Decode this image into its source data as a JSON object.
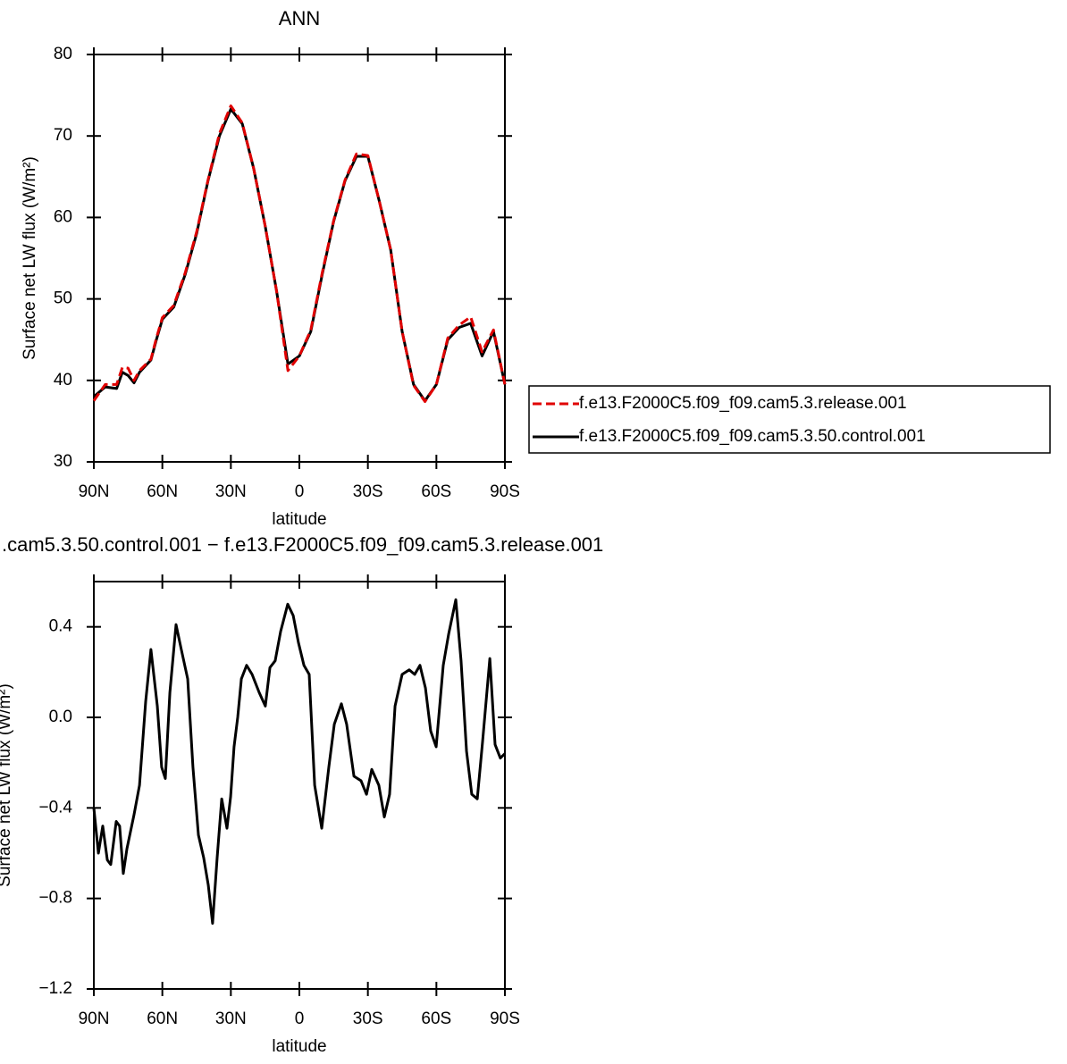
{
  "chart_data": [
    {
      "type": "line",
      "title": "ANN",
      "xlabel": "latitude",
      "ylabel": "Surface net LW flux (W/m²)",
      "xlim": [
        90,
        -90
      ],
      "xticks": [
        {
          "value": 90,
          "label": "90N"
        },
        {
          "value": 60,
          "label": "60N"
        },
        {
          "value": 30,
          "label": "30N"
        },
        0,
        {
          "value": -30,
          "label": "30S"
        },
        {
          "value": -60,
          "label": "60S"
        },
        {
          "value": -90,
          "label": "90S"
        }
      ],
      "ylim": [
        30,
        80
      ],
      "yticks": [
        30,
        40,
        50,
        60,
        70,
        80
      ],
      "legend": "right",
      "x": [
        90,
        85,
        80,
        77.5,
        75,
        72.4,
        70,
        65,
        62.6,
        60,
        55,
        50,
        45,
        40,
        35,
        30,
        25,
        20,
        15,
        10,
        5,
        0,
        -5,
        -10,
        -15,
        -20,
        -25,
        -30,
        -35,
        -40,
        -45,
        -50,
        -55,
        -60,
        -65,
        -70,
        -75,
        -80,
        -85,
        -90
      ],
      "series": [
        {
          "name": "f.e13.F2000C5.f09_f09.cam5.3.release.001",
          "color": "#e00000",
          "line_style": "dashed",
          "values": [
            37.5,
            39.5,
            39.5,
            41.6,
            41.5,
            40,
            41.2,
            42.6,
            45.2,
            47.7,
            49.2,
            53.2,
            58.2,
            64.6,
            70.3,
            73.7,
            71.6,
            66,
            59,
            51,
            41.2,
            43,
            46.2,
            53.2,
            59.6,
            64.6,
            67.8,
            67.6,
            62,
            56,
            46,
            39.4,
            37.4,
            39.5,
            45.2,
            46.8,
            47.8,
            43.5,
            46.2,
            39.5
          ]
        },
        {
          "name": "f.e13.F2000C5.f09_f09.cam5.3.50.control.001",
          "color": "#000000",
          "line_style": "solid",
          "values": [
            38,
            39.2,
            39,
            41,
            40.6,
            39.7,
            41,
            42.5,
            45,
            47.5,
            49,
            53,
            58,
            64.5,
            70,
            73.3,
            71.5,
            66,
            59,
            51,
            42,
            43,
            46,
            53,
            59.5,
            64.5,
            67.5,
            67.5,
            62,
            56,
            46,
            39.5,
            37.5,
            39.5,
            45,
            46.5,
            47,
            43,
            46,
            39.5
          ]
        }
      ]
    },
    {
      "type": "line",
      "title": ".cam5.3.50.control.001 − f.e13.F2000C5.f09_f09.cam5.3.release.001",
      "xlabel": "latitude",
      "ylabel": "Surface net LW flux (W/m²)",
      "xlim": [
        90,
        -90
      ],
      "xticks": [
        {
          "value": 90,
          "label": "90N"
        },
        {
          "value": 60,
          "label": "60N"
        },
        {
          "value": 30,
          "label": "30N"
        },
        0,
        {
          "value": -30,
          "label": "30S"
        },
        {
          "value": -60,
          "label": "60S"
        },
        {
          "value": -90,
          "label": "90S"
        }
      ],
      "ylim": [
        -1.2,
        0.6
      ],
      "yticks": [
        {
          "value": -1.2,
          "label": "−1.2"
        },
        {
          "value": -0.8,
          "label": "−0.8"
        },
        {
          "value": -0.4,
          "label": "−0.4"
        },
        {
          "value": 0,
          "label": "0.0"
        },
        0.4
      ],
      "x": [
        90,
        88,
        86.1,
        84.1,
        82.6,
        80.2,
        78.7,
        77.1,
        75.5,
        72.4,
        70,
        67.3,
        65,
        62.2,
        60.3,
        58.7,
        56.7,
        54,
        51.7,
        48.9,
        46.6,
        44.2,
        41.9,
        39.9,
        38,
        36,
        34,
        31.7,
        30.1,
        28.6,
        27,
        25.4,
        23.1,
        20.7,
        17.6,
        14.9,
        12.9,
        10.6,
        8.2,
        5.1,
        2.7,
        0.4,
        -2,
        -4.3,
        -6.7,
        -9.8,
        -12.9,
        -15.3,
        -18.4,
        -20.7,
        -23.9,
        -27,
        -29.4,
        -31.7,
        -34.8,
        -37.2,
        -39.5,
        -41.9,
        -45,
        -48.1,
        -50.5,
        -52.8,
        -55.2,
        -57.5,
        -59.9,
        -63,
        -65.4,
        -68.5,
        -70.8,
        -73.2,
        -75.5,
        -77.9,
        -80.2,
        -83.4,
        -85.7,
        -88,
        -90
      ],
      "series": [
        {
          "color": "#000000",
          "line_style": "solid",
          "values": [
            -0.4,
            -0.6,
            -0.48,
            -0.63,
            -0.65,
            -0.46,
            -0.48,
            -0.69,
            -0.58,
            -0.43,
            -0.3,
            0.07,
            0.3,
            0.05,
            -0.22,
            -0.27,
            0.11,
            0.41,
            0.3,
            0.17,
            -0.22,
            -0.52,
            -0.62,
            -0.74,
            -0.91,
            -0.62,
            -0.36,
            -0.49,
            -0.35,
            -0.13,
            0,
            0.17,
            0.23,
            0.19,
            0.11,
            0.05,
            0.22,
            0.25,
            0.38,
            0.5,
            0.45,
            0.33,
            0.23,
            0.19,
            -0.3,
            -0.49,
            -0.22,
            -0.03,
            0.06,
            -0.03,
            -0.26,
            -0.28,
            -0.34,
            -0.23,
            -0.3,
            -0.44,
            -0.34,
            0.05,
            0.19,
            0.21,
            0.19,
            0.23,
            0.13,
            -0.06,
            -0.13,
            0.23,
            0.37,
            0.52,
            0.25,
            -0.15,
            -0.34,
            -0.36,
            -0.11,
            0.26,
            -0.12,
            -0.18,
            -0.16
          ]
        }
      ]
    }
  ]
}
